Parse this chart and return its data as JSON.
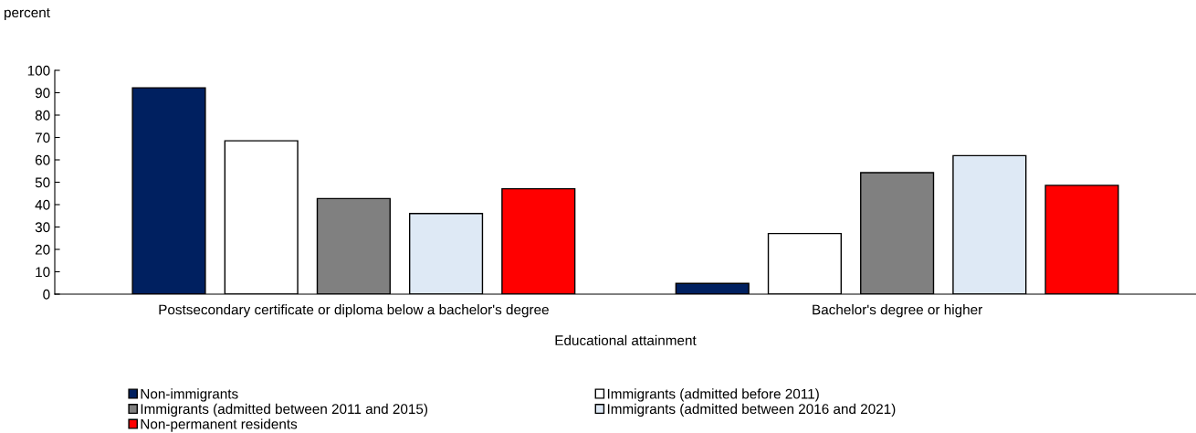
{
  "chart_data": {
    "type": "bar",
    "ylabel": "percent",
    "xlabel": "Educational attainment",
    "categories": [
      "Postsecondary certificate or diploma below a bachelor's degree",
      "Bachelor's degree or higher"
    ],
    "series": [
      {
        "name": "Non-immigrants",
        "color": "#002060",
        "values": [
          92.2,
          4.8
        ]
      },
      {
        "name": "Immigrants (admitted before 2011)",
        "color": "#ffffff",
        "values": [
          68.5,
          27.1
        ]
      },
      {
        "name": "Immigrants (admitted between 2011 and 2015)",
        "color": "#808080",
        "values": [
          42.7,
          54.3
        ]
      },
      {
        "name": "Immigrants (admitted between 2016 and 2021)",
        "color": "#dee9f5",
        "values": [
          36.0,
          61.9
        ]
      },
      {
        "name": "Non-permanent residents",
        "color": "#ff0000",
        "values": [
          47.1,
          48.6
        ]
      }
    ],
    "ylim": [
      0,
      100
    ],
    "yticks": [
      0,
      10,
      20,
      30,
      40,
      50,
      60,
      70,
      80,
      90,
      100
    ],
    "grid": false,
    "legend": "bottom"
  }
}
